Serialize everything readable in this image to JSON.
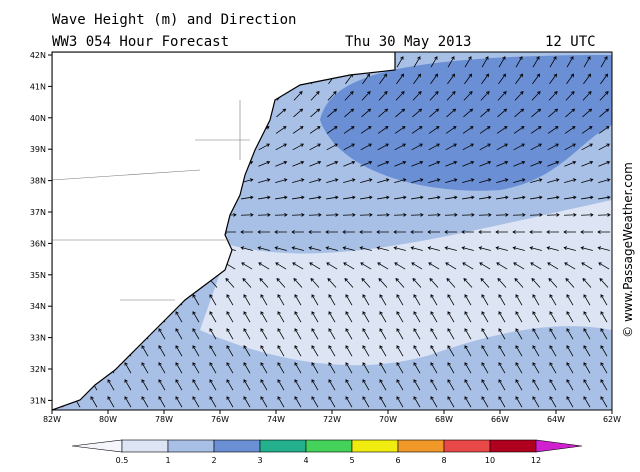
{
  "header": {
    "title": "Wave Height (m) and Direction",
    "model": "WW3 054 Hour Forecast",
    "date": "Thu 30 May 2013",
    "time": "12 UTC"
  },
  "map": {
    "lon_labels": [
      "82W",
      "80W",
      "78W",
      "76W",
      "74W",
      "72W",
      "70W",
      "68W",
      "66W",
      "64W",
      "62W"
    ],
    "lat_labels": [
      "42N",
      "41N",
      "40N",
      "39N",
      "38N",
      "37N",
      "36N",
      "35N",
      "34N",
      "33N",
      "32N",
      "31N"
    ]
  },
  "legend": {
    "labels": [
      "0.5",
      "1",
      "2",
      "3",
      "4",
      "5",
      "6",
      "8",
      "10",
      "12"
    ],
    "colors": [
      "#f4f6fb",
      "#dde5f5",
      "#a9c0e6",
      "#6b8fd4",
      "#24b08c",
      "#44d25a",
      "#f0ec10",
      "#f09828",
      "#e84848",
      "#b00020",
      "#d020d0"
    ]
  },
  "watermark": "© www.PassageWeather.com"
}
